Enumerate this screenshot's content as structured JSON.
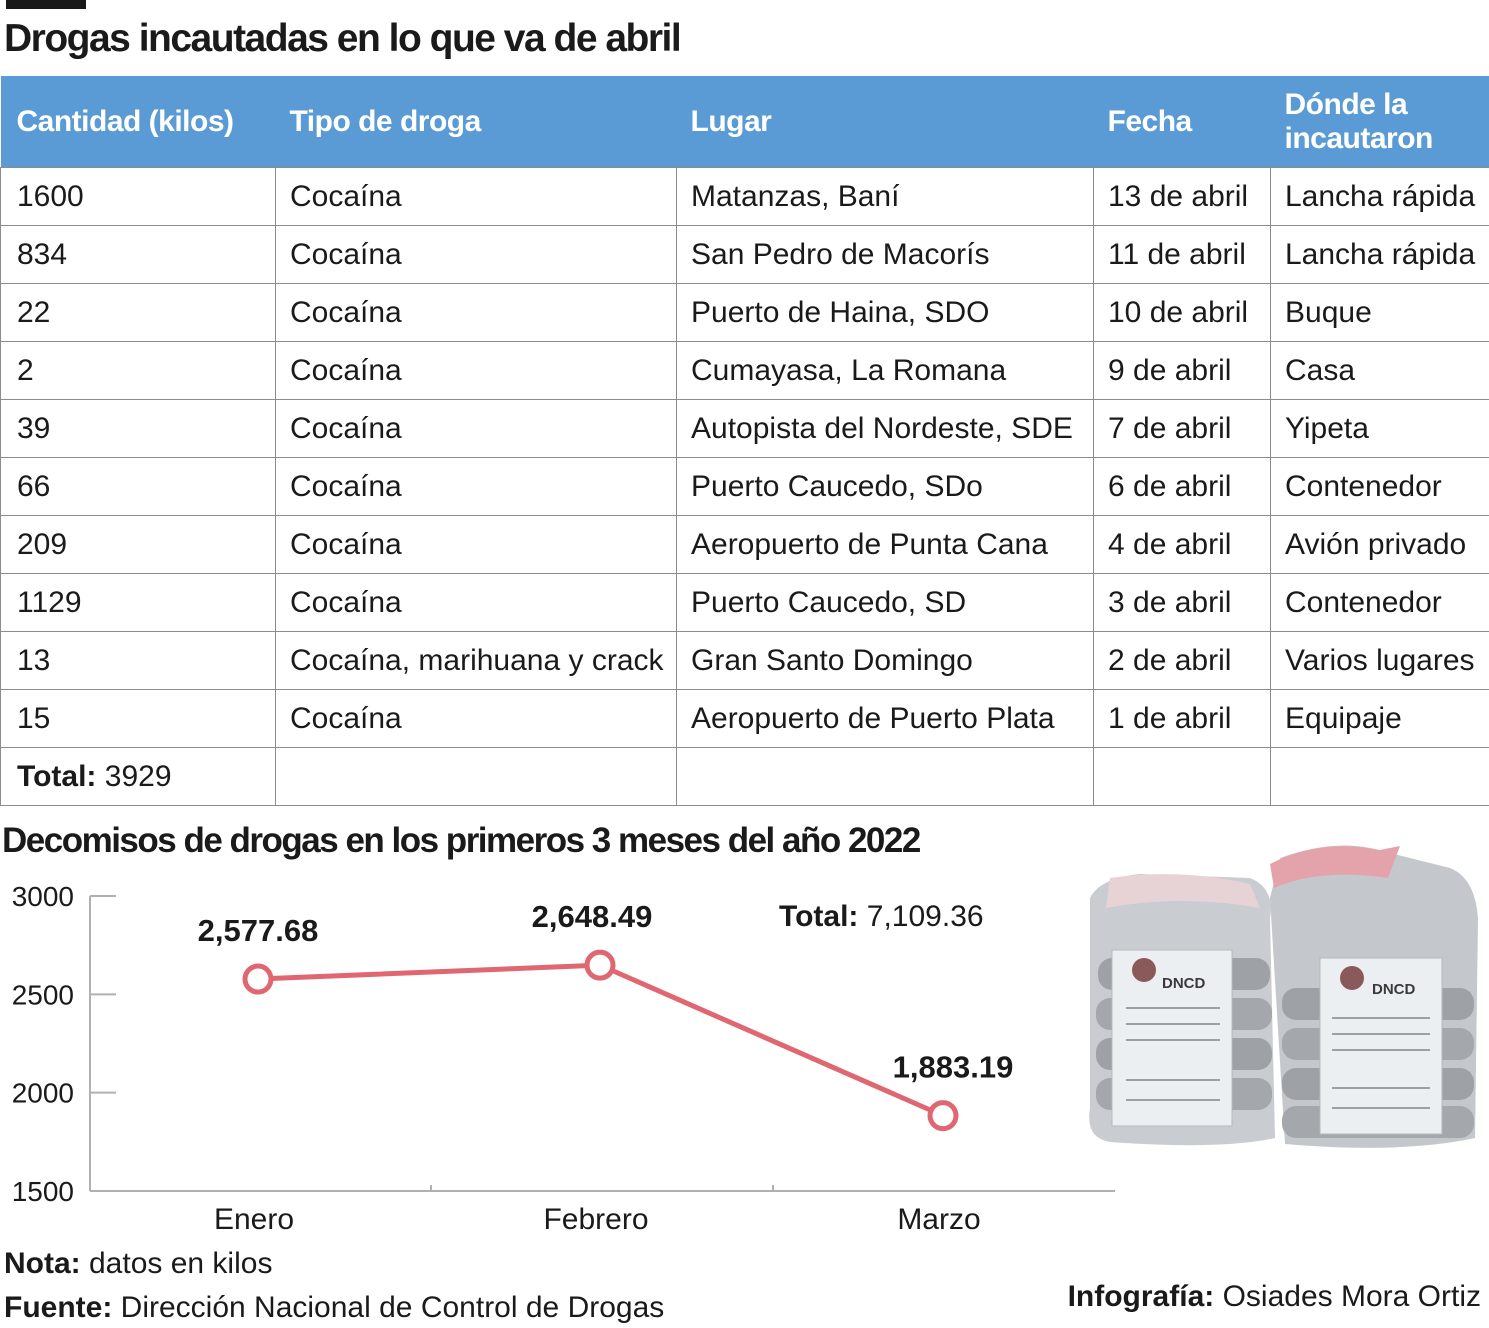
{
  "title": "Drogas incautadas en lo que va de abril",
  "table": {
    "headers": [
      "Cantidad (kilos)",
      "Tipo de droga",
      "Lugar",
      "Fecha",
      "Dónde la incautaron"
    ],
    "rows": [
      [
        "1600",
        "Cocaína",
        "Matanzas, Baní",
        "13 de abril",
        "Lancha rápida"
      ],
      [
        "834",
        "Cocaína",
        "San Pedro de Macorís",
        "11 de abril",
        "Lancha rápida"
      ],
      [
        "22",
        "Cocaína",
        "Puerto de Haina, SDO",
        "10 de abril",
        "Buque"
      ],
      [
        "2",
        "Cocaína",
        "Cumayasa, La Romana",
        "9 de abril",
        "Casa"
      ],
      [
        "39",
        "Cocaína",
        "Autopista del Nordeste, SDE",
        "7 de abril",
        "Yipeta"
      ],
      [
        "66",
        "Cocaína",
        "Puerto Caucedo, SDo",
        "6 de abril",
        "Contenedor"
      ],
      [
        "209",
        "Cocaína",
        "Aeropuerto de Punta Cana",
        "4 de abril",
        "Avión privado"
      ],
      [
        "1129",
        "Cocaína",
        "Puerto Caucedo, SD",
        "3 de abril",
        "Contenedor"
      ],
      [
        "13",
        "Cocaína, marihuana y crack",
        "Gran Santo Domingo",
        "2 de abril",
        "Varios lugares"
      ],
      [
        "15",
        "Cocaína",
        "Aeropuerto de Puerto Plata",
        "1 de abril",
        "Equipaje"
      ]
    ],
    "total_label": "Total:",
    "total_value": "3929",
    "header_color": "#5b9bd5"
  },
  "chart_data": {
    "type": "line",
    "title": "Decomisos de drogas en los primeros 3 meses del año 2022",
    "categories": [
      "Enero",
      "Febrero",
      "Marzo"
    ],
    "values": [
      2577.68,
      2648.49,
      1883.19
    ],
    "data_labels": [
      "2,577.68",
      "2,648.49",
      "1,883.19"
    ],
    "ylim": [
      1500,
      3000
    ],
    "yticks": [
      3000,
      2500,
      2000,
      1500
    ],
    "xlabel": "",
    "ylabel": "",
    "grid": false,
    "line_color": "#e06672",
    "total_label": "Total:",
    "total_value": "7,109.36"
  },
  "photo": {
    "label_left": "DNCD",
    "label_right": "DNCD"
  },
  "note": {
    "label": "Nota:",
    "text": "datos en kilos"
  },
  "source": {
    "label": "Fuente:",
    "text": "Dirección Nacional de Control de Drogas"
  },
  "credit": {
    "label": "Infografía:",
    "text": "Osiades Mora Ortiz"
  }
}
